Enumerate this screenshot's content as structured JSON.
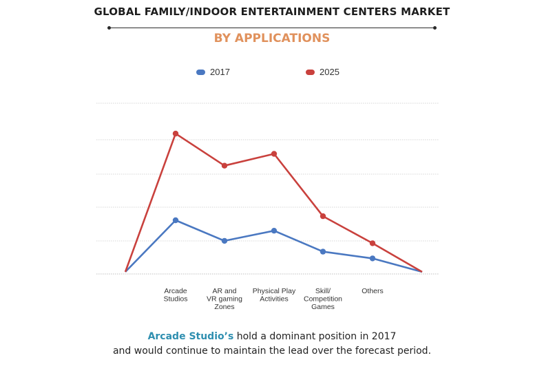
{
  "header": {
    "title": "GLOBAL FAMILY/INDOOR ENTERTAINMENT CENTERS MARKET",
    "subtitle": "BY APPLICATIONS"
  },
  "caption": {
    "highlight": "Arcade Studio’s",
    "line1_rest": " hold a dominant position in 2017",
    "line2": "and would continue to maintain the lead over the forecast period."
  },
  "colors": {
    "series_2017": "#4a78c1",
    "series_2025": "#c9413d",
    "gridline": "#d6d6d6",
    "caption_highlight": "#2f8fb0",
    "subtitle": "#e0915c"
  },
  "chart_data": {
    "type": "line",
    "title": "GLOBAL FAMILY/INDOOR ENTERTAINMENT CENTERS MARKET",
    "subtitle": "BY APPLICATIONS",
    "categories": [
      "",
      "Arcade Studios",
      "AR and VR gaming Zones",
      "Physical Play Activities",
      "Skill/ Competition Games",
      "Others",
      ""
    ],
    "category_label_lines": [
      [],
      [
        "Arcade",
        "Studios"
      ],
      [
        "AR and",
        "VR gaming",
        "Zones"
      ],
      [
        "Physical Play",
        "Activities"
      ],
      [
        "Skill/",
        "Competition",
        "Games"
      ],
      [
        "Others"
      ],
      []
    ],
    "series": [
      {
        "name": "2017",
        "values": [
          0,
          1.53,
          0.92,
          1.22,
          0.6,
          0.4,
          0
        ],
        "color": "#4a78c1"
      },
      {
        "name": "2025",
        "values": [
          0,
          4.1,
          3.15,
          3.5,
          1.65,
          0.85,
          0
        ],
        "color": "#c9413d"
      }
    ],
    "ylim": [
      0,
      5
    ],
    "grid": true,
    "legend": "top-center",
    "xlabel": "",
    "ylabel": ""
  }
}
